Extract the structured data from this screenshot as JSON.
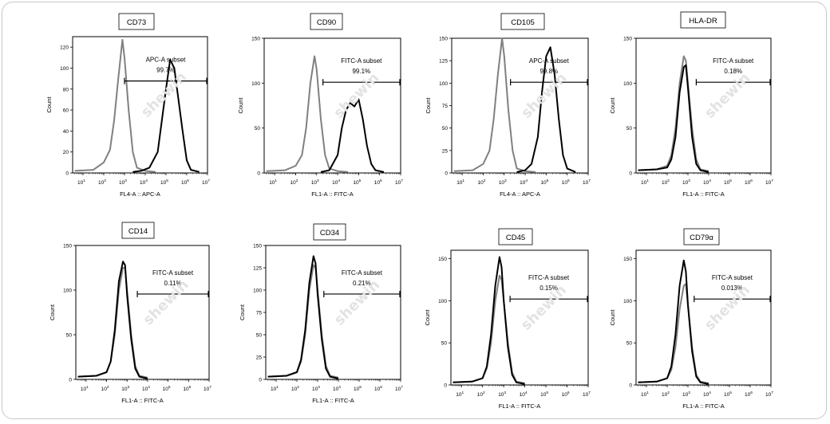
{
  "watermark": "shewin",
  "chart_data": [
    {
      "type": "line",
      "title": "CD73",
      "gate_label": "APC-A subset",
      "gate_value": "99.7%",
      "xlabel": "FL4-A :: APC-A",
      "ylabel": "Count",
      "ylim": [
        0,
        130
      ],
      "yticks": [
        0,
        20,
        40,
        60,
        80,
        100,
        120
      ],
      "xlim_log10": [
        0.5,
        7
      ],
      "xtick_exponents": [
        1,
        2,
        3,
        4,
        5,
        6,
        7
      ],
      "gate_range_log10": [
        3.0,
        7.0
      ],
      "series": [
        {
          "name": "",
          "color": "#808080",
          "x_log10": [
            0.6,
            1.5,
            2.0,
            2.3,
            2.5,
            2.7,
            2.9,
            3.0,
            3.2,
            3.4,
            3.6,
            4.0,
            4.5
          ],
          "y": [
            2,
            3,
            10,
            22,
            50,
            90,
            127,
            110,
            60,
            20,
            5,
            2,
            1
          ]
        },
        {
          "name": "",
          "color": "#000000",
          "x_log10": [
            3.4,
            3.8,
            4.2,
            4.6,
            4.8,
            5.0,
            5.2,
            5.4,
            5.6,
            5.8,
            6.0,
            6.2,
            6.6
          ],
          "y": [
            1,
            2,
            5,
            20,
            50,
            80,
            108,
            100,
            70,
            40,
            12,
            3,
            1
          ]
        }
      ]
    },
    {
      "type": "line",
      "title": "CD90",
      "gate_label": "FITC-A subset",
      "gate_value": "99.1%",
      "xlabel": "FL1-A :: FITC-A",
      "ylabel": "Count",
      "ylim": [
        0,
        150
      ],
      "yticks": [
        0,
        50,
        100,
        150
      ],
      "xlim_log10": [
        0.5,
        7
      ],
      "xtick_exponents": [
        1,
        2,
        3,
        4,
        5,
        6,
        7
      ],
      "gate_range_log10": [
        3.3,
        7.0
      ],
      "series": [
        {
          "name": "",
          "color": "#808080",
          "x_log10": [
            0.6,
            1.5,
            2.0,
            2.3,
            2.5,
            2.7,
            2.9,
            3.0,
            3.2,
            3.4,
            3.6,
            4.0,
            4.5
          ],
          "y": [
            2,
            3,
            8,
            20,
            50,
            100,
            130,
            115,
            60,
            20,
            5,
            2,
            1
          ]
        },
        {
          "name": "",
          "color": "#000000",
          "x_log10": [
            3.2,
            3.6,
            4.0,
            4.2,
            4.4,
            4.6,
            4.8,
            5.0,
            5.2,
            5.4,
            5.6,
            5.8,
            6.2
          ],
          "y": [
            1,
            3,
            20,
            50,
            70,
            78,
            74,
            82,
            60,
            30,
            10,
            3,
            1
          ]
        }
      ]
    },
    {
      "type": "line",
      "title": "CD105",
      "gate_label": "APC-A subset",
      "gate_value": "99.8%",
      "xlabel": "FL4-A :: APC-A",
      "ylabel": "Count",
      "ylim": [
        0,
        150
      ],
      "yticks": [
        0,
        25,
        50,
        75,
        100,
        125,
        150
      ],
      "xlim_log10": [
        0.5,
        7
      ],
      "xtick_exponents": [
        1,
        2,
        3,
        4,
        5,
        6,
        7
      ],
      "gate_range_log10": [
        3.3,
        7.0
      ],
      "series": [
        {
          "name": "",
          "color": "#808080",
          "x_log10": [
            0.6,
            1.5,
            2.0,
            2.3,
            2.5,
            2.7,
            2.9,
            3.0,
            3.2,
            3.4,
            3.6,
            4.0,
            4.5
          ],
          "y": [
            2,
            3,
            10,
            25,
            60,
            110,
            150,
            130,
            70,
            25,
            5,
            2,
            1
          ]
        },
        {
          "name": "",
          "color": "#000000",
          "x_log10": [
            3.6,
            4.0,
            4.3,
            4.6,
            4.8,
            5.0,
            5.2,
            5.4,
            5.6,
            5.8,
            6.0,
            6.4
          ],
          "y": [
            1,
            3,
            10,
            40,
            90,
            130,
            140,
            110,
            60,
            20,
            5,
            1
          ]
        }
      ]
    },
    {
      "type": "line",
      "title": "HLA-DR",
      "gate_label": "FITC-A subset",
      "gate_value": "0.18%",
      "xlabel": "FL1-A :: FITC-A",
      "ylabel": "Count",
      "ylim": [
        0,
        150
      ],
      "yticks": [
        0,
        50,
        100,
        150
      ],
      "xlim_log10": [
        0.5,
        7
      ],
      "xtick_exponents": [
        1,
        2,
        3,
        4,
        5,
        6,
        7
      ],
      "gate_range_log10": [
        3.4,
        7.0
      ],
      "series": [
        {
          "name": "",
          "color": "#808080",
          "x_log10": [
            0.6,
            1.5,
            2.0,
            2.2,
            2.4,
            2.6,
            2.8,
            2.9,
            3.0,
            3.2,
            3.4,
            3.6,
            4.0
          ],
          "y": [
            3,
            4,
            8,
            20,
            50,
            100,
            130,
            125,
            100,
            50,
            15,
            4,
            2
          ]
        },
        {
          "name": "",
          "color": "#000000",
          "x_log10": [
            0.6,
            1.5,
            2.0,
            2.2,
            2.4,
            2.6,
            2.8,
            2.9,
            3.0,
            3.2,
            3.4,
            3.6,
            4.0
          ],
          "y": [
            3,
            4,
            6,
            15,
            40,
            90,
            118,
            120,
            95,
            40,
            10,
            3,
            1
          ]
        }
      ]
    },
    {
      "type": "line",
      "title": "CD14",
      "gate_label": "FITC-A subset",
      "gate_value": "0.11%",
      "xlabel": "FL1-A :: FITC-A",
      "ylabel": "Count",
      "ylim": [
        0,
        150
      ],
      "yticks": [
        0,
        50,
        100,
        150
      ],
      "xlim_log10": [
        0.5,
        7
      ],
      "xtick_exponents": [
        1,
        2,
        3,
        4,
        5,
        6,
        7
      ],
      "gate_range_log10": [
        3.5,
        7.0
      ],
      "series": [
        {
          "name": "",
          "color": "#808080",
          "x_log10": [
            0.6,
            1.5,
            2.0,
            2.2,
            2.4,
            2.6,
            2.8,
            2.9,
            3.0,
            3.2,
            3.4,
            3.6,
            4.0
          ],
          "y": [
            3,
            4,
            8,
            20,
            50,
            100,
            125,
            125,
            100,
            50,
            15,
            4,
            2
          ]
        },
        {
          "name": "",
          "color": "#000000",
          "x_log10": [
            0.6,
            1.5,
            2.0,
            2.2,
            2.4,
            2.6,
            2.8,
            2.9,
            3.0,
            3.2,
            3.4,
            3.6,
            4.0
          ],
          "y": [
            3,
            4,
            8,
            20,
            55,
            110,
            132,
            128,
            95,
            45,
            12,
            3,
            1
          ]
        }
      ]
    },
    {
      "type": "line",
      "title": "CD34",
      "gate_label": "FITC-A subset",
      "gate_value": "0.21%",
      "xlabel": "FL1-A :: FITC-A",
      "ylabel": "Count",
      "ylim": [
        0,
        150
      ],
      "yticks": [
        0,
        25,
        50,
        75,
        100,
        125,
        150
      ],
      "xlim_log10": [
        0.5,
        7
      ],
      "xtick_exponents": [
        1,
        2,
        3,
        4,
        5,
        6,
        7
      ],
      "gate_range_log10": [
        3.3,
        7.0
      ],
      "series": [
        {
          "name": "",
          "color": "#808080",
          "x_log10": [
            0.6,
            1.5,
            2.0,
            2.2,
            2.4,
            2.6,
            2.8,
            2.9,
            3.0,
            3.2,
            3.4,
            3.6,
            4.0
          ],
          "y": [
            3,
            4,
            8,
            20,
            50,
            100,
            128,
            125,
            100,
            50,
            15,
            4,
            2
          ]
        },
        {
          "name": "",
          "color": "#000000",
          "x_log10": [
            0.6,
            1.5,
            2.0,
            2.2,
            2.4,
            2.6,
            2.8,
            2.9,
            3.0,
            3.2,
            3.4,
            3.6,
            4.0
          ],
          "y": [
            3,
            4,
            8,
            22,
            55,
            108,
            138,
            130,
            95,
            45,
            12,
            3,
            1
          ]
        }
      ]
    },
    {
      "type": "line",
      "title": "CD45",
      "gate_label": "FITC-A subset",
      "gate_value": "0.15%",
      "xlabel": "FL1-A :: FITC-A",
      "ylabel": "Count",
      "ylim": [
        0,
        160
      ],
      "yticks": [
        0,
        50,
        100,
        150
      ],
      "xlim_log10": [
        0.5,
        7
      ],
      "xtick_exponents": [
        1,
        2,
        3,
        4,
        5,
        6,
        7
      ],
      "gate_range_log10": [
        3.3,
        7.0
      ],
      "series": [
        {
          "name": "",
          "color": "#808080",
          "x_log10": [
            0.6,
            1.5,
            2.0,
            2.2,
            2.4,
            2.6,
            2.8,
            2.9,
            3.0,
            3.2,
            3.4,
            3.6,
            4.0
          ],
          "y": [
            3,
            4,
            8,
            20,
            50,
            100,
            130,
            125,
            100,
            50,
            15,
            4,
            2
          ]
        },
        {
          "name": "",
          "color": "#000000",
          "x_log10": [
            0.6,
            1.5,
            2.0,
            2.2,
            2.4,
            2.6,
            2.8,
            2.9,
            3.0,
            3.2,
            3.4,
            3.6,
            4.0
          ],
          "y": [
            3,
            4,
            8,
            22,
            60,
            118,
            152,
            140,
            100,
            45,
            12,
            3,
            1
          ]
        }
      ]
    },
    {
      "type": "line",
      "title": "CD79α",
      "gate_label": "FITC-A subset",
      "gate_value": "0.013%",
      "xlabel": "FL1-A :: FITC-A",
      "ylabel": "Count",
      "ylim": [
        0,
        160
      ],
      "yticks": [
        0,
        50,
        100,
        150
      ],
      "xlim_log10": [
        0.5,
        7
      ],
      "xtick_exponents": [
        1,
        2,
        3,
        4,
        5,
        6,
        7
      ],
      "gate_range_log10": [
        3.3,
        7.0
      ],
      "series": [
        {
          "name": "",
          "color": "#808080",
          "x_log10": [
            0.6,
            1.5,
            2.0,
            2.2,
            2.4,
            2.6,
            2.8,
            2.9,
            3.0,
            3.2,
            3.4,
            3.6,
            4.0
          ],
          "y": [
            3,
            4,
            8,
            18,
            45,
            90,
            118,
            120,
            95,
            45,
            12,
            4,
            2
          ]
        },
        {
          "name": "",
          "color": "#000000",
          "x_log10": [
            0.6,
            1.5,
            2.0,
            2.2,
            2.4,
            2.6,
            2.8,
            2.9,
            3.0,
            3.2,
            3.4,
            3.6,
            4.0
          ],
          "y": [
            3,
            4,
            8,
            22,
            60,
            118,
            148,
            135,
            95,
            40,
            10,
            3,
            1
          ]
        }
      ]
    }
  ]
}
